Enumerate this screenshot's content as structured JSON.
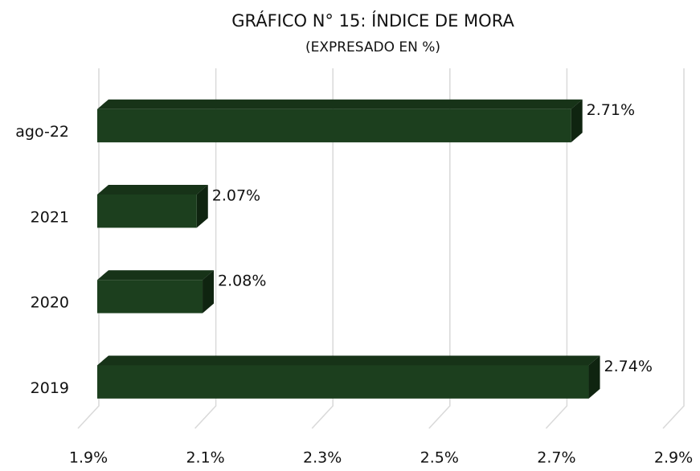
{
  "chart_data": {
    "type": "bar",
    "orientation": "horizontal",
    "title": "GRÁFICO N° 15: ÍNDICE DE MORA",
    "subtitle": "(EXPRESADO EN %)",
    "categories": [
      "ago-22",
      "2021",
      "2020",
      "2019"
    ],
    "values": [
      2.71,
      2.07,
      2.08,
      2.74
    ],
    "value_labels": [
      "2.71%",
      "2.07%",
      "2.08%",
      "2.74%"
    ],
    "color": "#1c3f1e",
    "xlim": [
      1.9,
      2.9
    ],
    "xticks": [
      {
        "value": 1.9,
        "label": "1.9%"
      },
      {
        "value": 2.1,
        "label": "2.1%"
      },
      {
        "value": 2.3,
        "label": "2.3%"
      },
      {
        "value": 2.5,
        "label": "2.5%"
      },
      {
        "value": 2.7,
        "label": "2.7%"
      },
      {
        "value": 2.9,
        "label": "2.9%"
      }
    ],
    "grid": true
  }
}
